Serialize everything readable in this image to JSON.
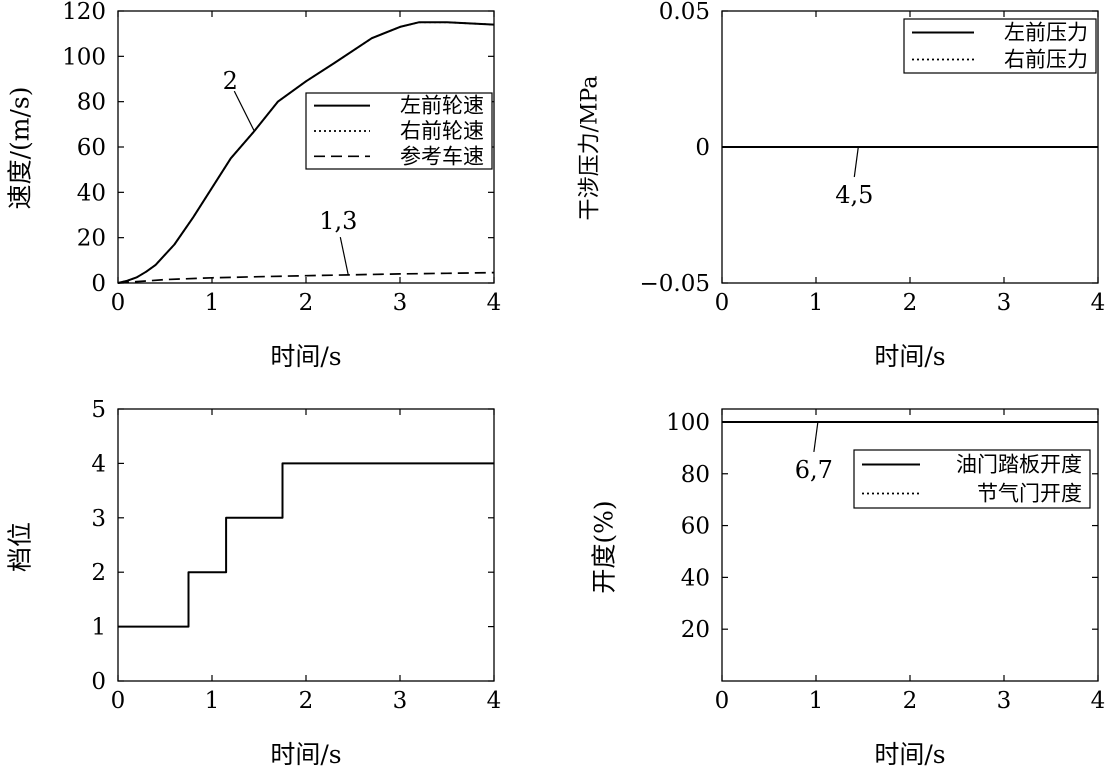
{
  "chart_data": [
    {
      "type": "line",
      "panel": "top-left",
      "xlabel": "时间/s",
      "ylabel": "速度/(m/s)",
      "xlim": [
        0,
        4
      ],
      "ylim": [
        0,
        120
      ],
      "xticks": [
        0,
        1,
        2,
        3,
        4
      ],
      "yticks": [
        0,
        20,
        40,
        60,
        80,
        100,
        120
      ],
      "grid": false,
      "legend_position": "center-right",
      "series": [
        {
          "name": "左前轮速",
          "style": "solid",
          "x": [
            0,
            0.1,
            0.2,
            0.3,
            0.4,
            0.5,
            0.6,
            0.8,
            1.0,
            1.2,
            1.45,
            1.7,
            2.0,
            2.3,
            2.7,
            3.0,
            3.2,
            3.5,
            4.0
          ],
          "y": [
            0,
            1,
            2.5,
            5,
            8,
            12.5,
            17,
            29,
            42,
            55,
            67,
            80,
            89,
            97,
            108,
            113,
            115,
            115,
            114
          ]
        },
        {
          "name": "右前轮速",
          "style": "dotted",
          "x": [
            0,
            0.1,
            0.2,
            0.3,
            0.4,
            0.5,
            0.6,
            0.8,
            1.0,
            1.2,
            1.45,
            1.7,
            2.0,
            2.3,
            2.7,
            3.0,
            3.2,
            3.5,
            4.0
          ],
          "y": [
            0,
            1,
            2.5,
            5,
            8,
            12.5,
            17,
            29,
            42,
            55,
            67,
            80,
            89,
            97,
            108,
            113,
            115,
            115,
            114
          ]
        },
        {
          "name": "参考车速",
          "style": "dashed",
          "x": [
            0,
            0.5,
            1.0,
            1.5,
            2.0,
            2.5,
            3.0,
            3.5,
            4.0
          ],
          "y": [
            0,
            1.5,
            2.3,
            2.8,
            3.2,
            3.6,
            4.0,
            4.3,
            4.6
          ]
        }
      ],
      "annotations": [
        {
          "text": "2",
          "x": 1.45,
          "y": 67,
          "label_pos": "upper-left"
        },
        {
          "text": "1,3",
          "x": 2.45,
          "y": 3.5,
          "label_pos": "above"
        }
      ]
    },
    {
      "type": "line",
      "panel": "top-right",
      "xlabel": "时间/s",
      "ylabel": "干涉压力/MPa",
      "xlim": [
        0,
        4
      ],
      "ylim": [
        -0.05,
        0.05
      ],
      "xticks": [
        0,
        1,
        2,
        3,
        4
      ],
      "yticks": [
        -0.05,
        0,
        0.05
      ],
      "ytick_labels": [
        "−0.05",
        "0",
        "0.05"
      ],
      "grid": false,
      "legend_position": "top-right",
      "series": [
        {
          "name": "左前压力",
          "style": "solid",
          "x": [
            0,
            4
          ],
          "y": [
            0,
            0
          ]
        },
        {
          "name": "右前压力",
          "style": "dotted",
          "x": [
            0,
            4
          ],
          "y": [
            0,
            0
          ]
        }
      ],
      "annotations": [
        {
          "text": "4,5",
          "x": 1.45,
          "y": 0,
          "label_pos": "below"
        }
      ]
    },
    {
      "type": "line",
      "panel": "bottom-left",
      "xlabel": "时间/s",
      "ylabel": "档位",
      "xlim": [
        0,
        4
      ],
      "ylim": [
        0,
        5
      ],
      "xticks": [
        0,
        1,
        2,
        3,
        4
      ],
      "yticks": [
        0,
        1,
        2,
        3,
        4,
        5
      ],
      "grid": false,
      "series": [
        {
          "style": "solid",
          "x": [
            0,
            0.75,
            0.75,
            1.15,
            1.15,
            1.75,
            1.75,
            4.0
          ],
          "y": [
            1,
            1,
            2,
            2,
            3,
            3,
            4,
            4
          ]
        }
      ]
    },
    {
      "type": "line",
      "panel": "bottom-right",
      "xlabel": "时间/s",
      "ylabel": "开度(%)",
      "xlim": [
        0,
        4
      ],
      "ylim": [
        0,
        105
      ],
      "xticks": [
        0,
        1,
        2,
        3,
        4
      ],
      "yticks": [
        20,
        40,
        60,
        80,
        100
      ],
      "grid": false,
      "legend_position": "center-right",
      "series": [
        {
          "name": "油门踏板开度",
          "style": "solid",
          "x": [
            0,
            4
          ],
          "y": [
            100,
            100
          ]
        },
        {
          "name": "节气门开度",
          "style": "dotted",
          "x": [
            0,
            4
          ],
          "y": [
            100,
            100
          ]
        }
      ],
      "annotations": [
        {
          "text": "6,7",
          "x": 1.02,
          "y": 100,
          "label_pos": "below"
        }
      ]
    }
  ]
}
